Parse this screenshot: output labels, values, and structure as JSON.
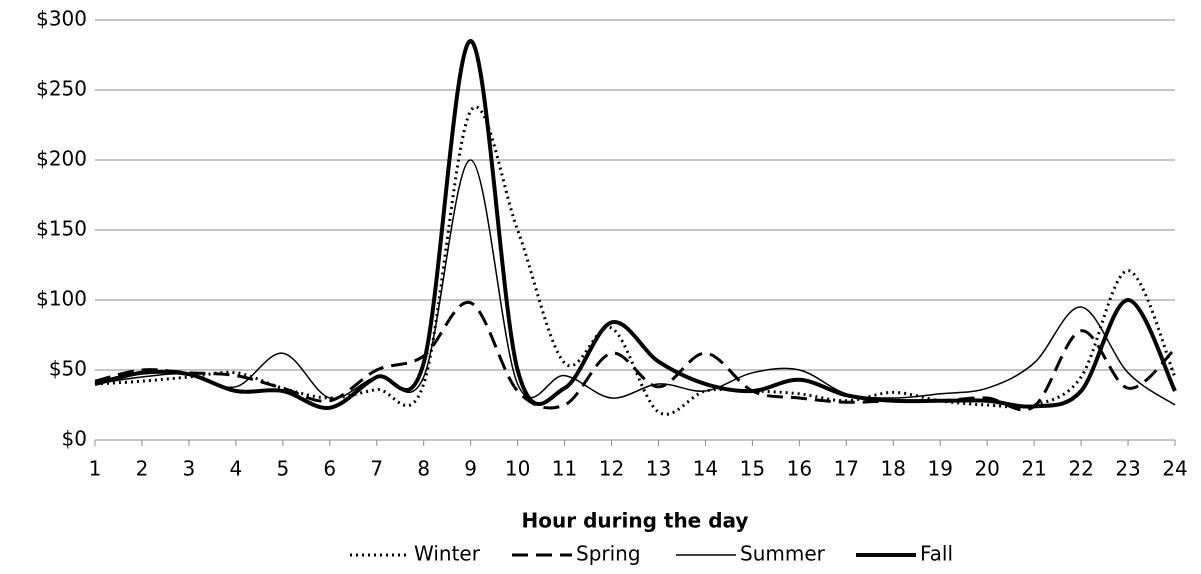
{
  "chart_data": {
    "type": "line",
    "x_label": "Hour during the day",
    "x": [
      1,
      2,
      3,
      4,
      5,
      6,
      7,
      8,
      9,
      10,
      11,
      12,
      13,
      14,
      15,
      16,
      17,
      18,
      19,
      20,
      21,
      22,
      23,
      24
    ],
    "xlim": [
      1,
      24
    ],
    "xticks": [
      1,
      2,
      3,
      4,
      5,
      6,
      7,
      8,
      9,
      10,
      11,
      12,
      13,
      14,
      15,
      16,
      17,
      18,
      19,
      20,
      21,
      22,
      23,
      24
    ],
    "ylim": [
      0,
      300
    ],
    "yticks": [
      {
        "value": 0,
        "label": "$0"
      },
      {
        "value": 50,
        "label": "$50"
      },
      {
        "value": 100,
        "label": "$100"
      },
      {
        "value": 150,
        "label": "$150"
      },
      {
        "value": 200,
        "label": "$200"
      },
      {
        "value": 250,
        "label": "$250"
      },
      {
        "value": 300,
        "label": "$300"
      }
    ],
    "grid": true,
    "smooth": true,
    "legend": "bottom",
    "series": [
      {
        "name": "Winter",
        "color": "#000000",
        "dash": "dotted",
        "width": 3,
        "values": [
          40,
          42,
          45,
          48,
          37,
          30,
          36,
          40,
          235,
          150,
          55,
          80,
          20,
          35,
          35,
          33,
          28,
          34,
          28,
          25,
          25,
          45,
          121,
          45
        ]
      },
      {
        "name": "Spring",
        "color": "#000000",
        "dash": "dashed",
        "width": 3,
        "values": [
          42,
          50,
          48,
          46,
          37,
          28,
          50,
          60,
          98,
          35,
          25,
          62,
          38,
          62,
          35,
          30,
          27,
          28,
          28,
          30,
          24,
          78,
          37,
          65
        ]
      },
      {
        "name": "Summer",
        "color": "#000000",
        "dash": "solid",
        "width": 1.5,
        "values": [
          40,
          45,
          47,
          38,
          62,
          30,
          45,
          45,
          200,
          40,
          46,
          30,
          40,
          35,
          48,
          50,
          33,
          30,
          33,
          37,
          55,
          95,
          48,
          25
        ]
      },
      {
        "name": "Fall",
        "color": "#000000",
        "dash": "solid",
        "width": 4,
        "values": [
          40,
          48,
          47,
          35,
          35,
          23,
          45,
          55,
          285,
          50,
          37,
          84,
          56,
          40,
          35,
          43,
          32,
          28,
          28,
          28,
          24,
          35,
          100,
          35
        ]
      }
    ]
  }
}
